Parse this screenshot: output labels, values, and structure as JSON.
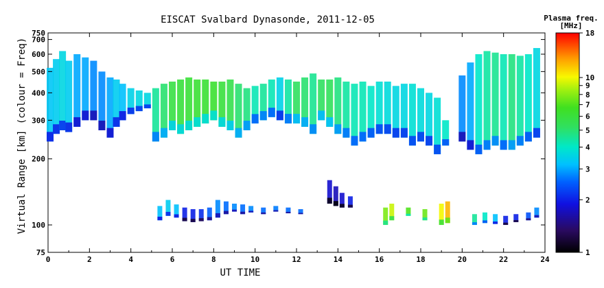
{
  "chart_data": {
    "type": "scatter",
    "title": "EISCAT Svalbard Dynasonde, 2011-12-05",
    "xlabel": "UT TIME",
    "ylabel": "Virtual Range [km] (colour = Freq)",
    "x_ticks": [
      "0",
      "2",
      "4",
      "6",
      "8",
      "10",
      "12",
      "14",
      "16",
      "18",
      "20",
      "22",
      "24"
    ],
    "y_ticks": [
      "75",
      "100",
      "200",
      "300",
      "400",
      "500",
      "600",
      "700",
      "750"
    ],
    "xlim": [
      0,
      24
    ],
    "ylim": [
      75,
      750
    ],
    "y_scale": "log",
    "grid": false,
    "colorbar": {
      "title": [
        "Plasma freq.",
        "[MHz]"
      ],
      "ticks": [
        "1",
        "2",
        "3",
        "4",
        "5",
        "6",
        "7",
        "8",
        "9",
        "10",
        "18"
      ],
      "range": [
        1,
        18
      ],
      "scale": "log"
    },
    "series": [
      {
        "description": "F-region echo clusters",
        "x": [
          0.1,
          0.4,
          0.7,
          1.0,
          1.4,
          1.8,
          2.2,
          2.6,
          3.0,
          3.3,
          3.6,
          4.0,
          4.4,
          4.8,
          5.2,
          5.6,
          6.0,
          6.4,
          6.8,
          7.2,
          7.6,
          8.0,
          8.4,
          8.8,
          9.2,
          9.6,
          10.0,
          10.4,
          10.8,
          11.2,
          11.6,
          12.0,
          12.4,
          12.8,
          13.2,
          13.6,
          14.0,
          14.4,
          14.8,
          15.2,
          15.6,
          16.0,
          16.4,
          16.8,
          17.2,
          17.6,
          18.0,
          18.4,
          18.8,
          19.2,
          20.0,
          20.4,
          20.8,
          21.2,
          21.6,
          22.0,
          22.4,
          22.8,
          23.2,
          23.6
        ],
        "y_low": [
          240,
          260,
          270,
          265,
          280,
          300,
          300,
          270,
          250,
          280,
          300,
          320,
          330,
          340,
          240,
          250,
          270,
          260,
          270,
          280,
          290,
          300,
          280,
          270,
          250,
          270,
          290,
          300,
          310,
          300,
          290,
          290,
          280,
          260,
          300,
          280,
          260,
          250,
          230,
          240,
          250,
          260,
          260,
          250,
          250,
          230,
          240,
          230,
          210,
          230,
          240,
          220,
          210,
          220,
          230,
          220,
          220,
          230,
          240,
          250
        ],
        "y_high": [
          520,
          570,
          620,
          560,
          600,
          580,
          560,
          500,
          470,
          460,
          440,
          420,
          410,
          400,
          420,
          440,
          450,
          460,
          470,
          460,
          460,
          450,
          450,
          460,
          440,
          420,
          430,
          440,
          460,
          470,
          460,
          450,
          470,
          490,
          460,
          460,
          470,
          450,
          440,
          450,
          430,
          450,
          450,
          430,
          440,
          440,
          420,
          400,
          380,
          300,
          480,
          550,
          600,
          620,
          610,
          600,
          600,
          590,
          600,
          640
        ],
        "freq_MHz": [
          3.3,
          3.4,
          3.6,
          3.4,
          3.0,
          3.0,
          2.8,
          2.8,
          3.0,
          3.4,
          3.2,
          3.5,
          3.6,
          3.6,
          4.5,
          5.0,
          5.8,
          6.0,
          6.1,
          6.2,
          6.2,
          6.3,
          6.0,
          5.6,
          5.0,
          4.8,
          4.2,
          4.5,
          4.2,
          3.5,
          4.4,
          5.2,
          5.0,
          4.6,
          5.2,
          5.3,
          4.8,
          4.4,
          4.2,
          4.2,
          4.0,
          3.8,
          3.7,
          3.6,
          3.6,
          3.8,
          3.7,
          3.6,
          3.8,
          4.0,
          2.8,
          3.0,
          4.0,
          4.4,
          4.6,
          4.2,
          4.8,
          4.4,
          4.0,
          3.6
        ]
      },
      {
        "description": "E-region echo clusters",
        "x": [
          5.4,
          5.8,
          6.2,
          6.6,
          7.0,
          7.4,
          7.8,
          8.2,
          8.6,
          9.0,
          9.4,
          9.8,
          10.4,
          11.0,
          11.6,
          12.2,
          13.6,
          13.9,
          14.2,
          14.6,
          16.3,
          16.6,
          17.4,
          18.2,
          19.0,
          19.3,
          20.6,
          21.1,
          21.6,
          22.1,
          22.6,
          23.2,
          23.6
        ],
        "y_low": [
          105,
          110,
          108,
          104,
          103,
          104,
          105,
          108,
          112,
          115,
          112,
          114,
          112,
          115,
          113,
          112,
          125,
          122,
          120,
          120,
          100,
          105,
          110,
          105,
          100,
          102,
          100,
          102,
          101,
          100,
          103,
          105,
          108
        ],
        "y_high": [
          122,
          130,
          124,
          120,
          118,
          118,
          120,
          130,
          128,
          125,
          124,
          122,
          120,
          122,
          120,
          118,
          160,
          150,
          140,
          135,
          120,
          125,
          120,
          118,
          125,
          128,
          112,
          114,
          112,
          110,
          112,
          114,
          120
        ],
        "freq_MHz": [
          3.2,
          3.4,
          3.2,
          2.0,
          2.0,
          2.1,
          2.5,
          2.8,
          2.6,
          2.8,
          2.6,
          2.8,
          2.6,
          2.7,
          2.6,
          2.6,
          1.8,
          1.7,
          1.8,
          2.0,
          7.8,
          9.2,
          7.0,
          7.5,
          10.0,
          12.0,
          4.5,
          4.0,
          3.2,
          2.0,
          2.0,
          2.4,
          2.8
        ]
      }
    ]
  }
}
